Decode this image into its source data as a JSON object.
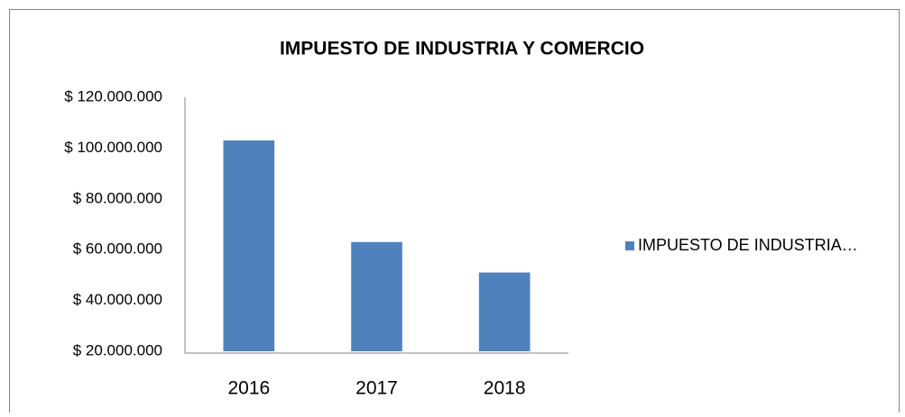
{
  "chart_data": {
    "type": "bar",
    "title": "IMPUESTO DE INDUSTRIA Y COMERCIO",
    "categories": [
      "2016",
      "2017",
      "2018"
    ],
    "series": [
      {
        "name": "IMPUESTO DE INDUSTRIA…",
        "color": "#4f81bd",
        "values": [
          103000000,
          63000000,
          51000000
        ]
      }
    ],
    "ylim": [
      20000000,
      120000000
    ],
    "yticks": [
      {
        "value": 20000000,
        "label": "$ 20.000.000"
      },
      {
        "value": 40000000,
        "label": "$ 40.000.000"
      },
      {
        "value": 60000000,
        "label": "$ 60.000.000"
      },
      {
        "value": 80000000,
        "label": "$ 80.000.000"
      },
      {
        "value": 100000000,
        "label": "$ 100.000.000"
      },
      {
        "value": 120000000,
        "label": "$ 120.000.000"
      }
    ],
    "grid": false,
    "legend": "right"
  }
}
